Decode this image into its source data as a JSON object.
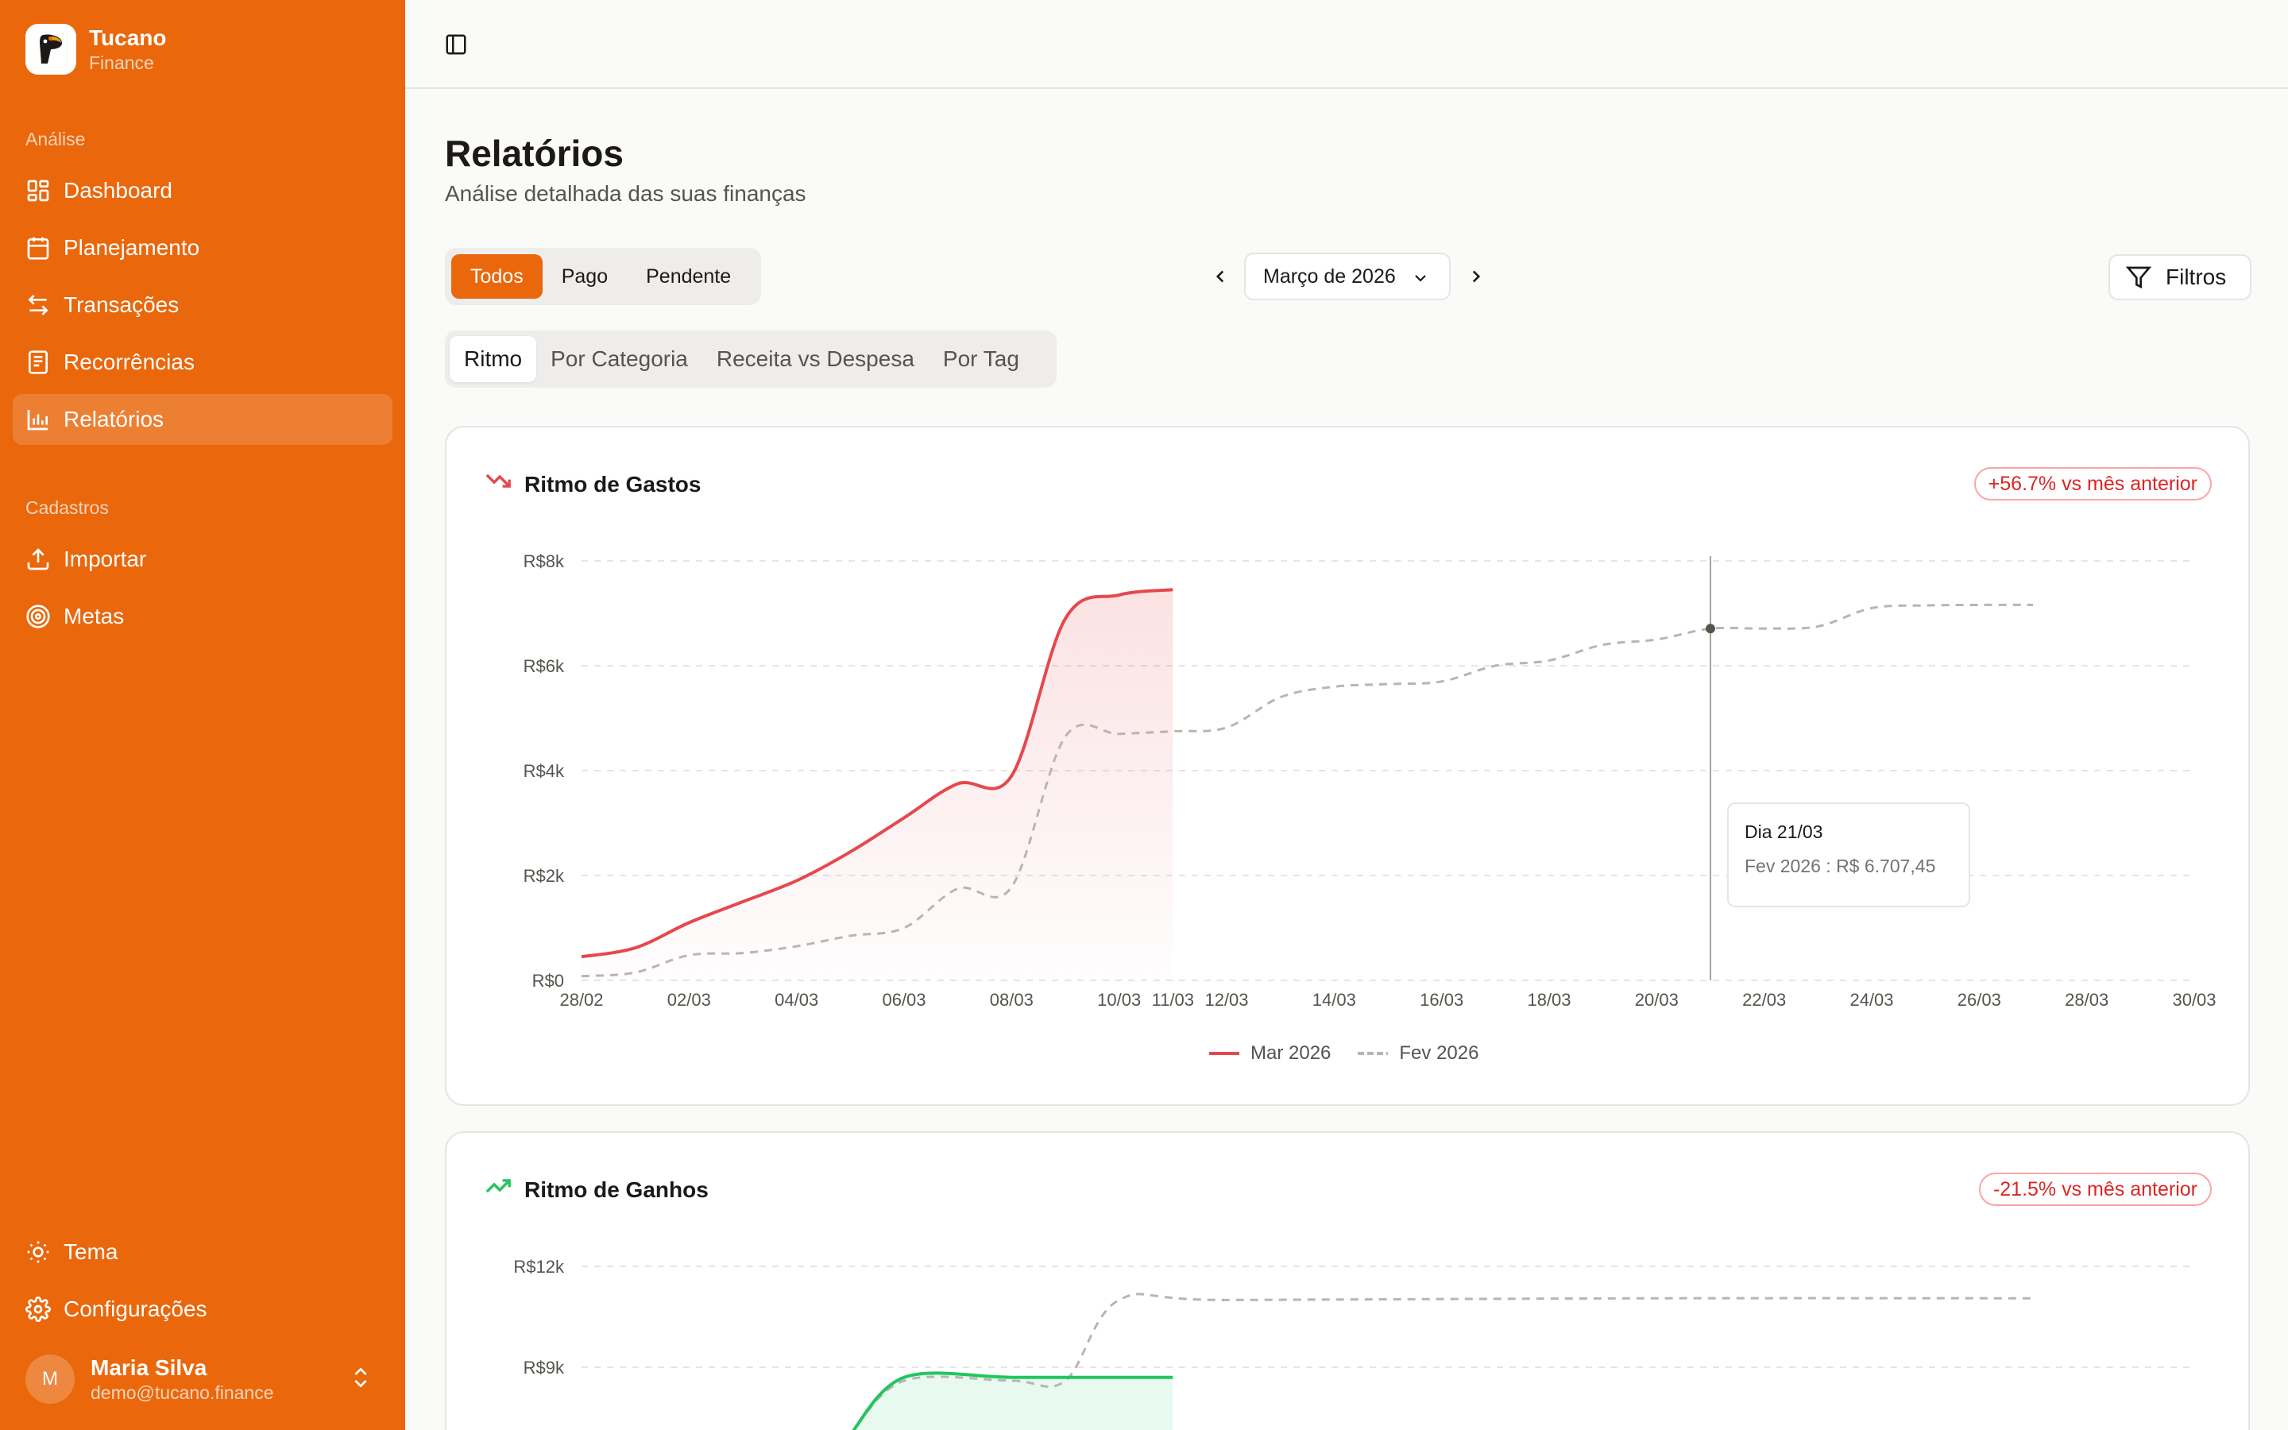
{
  "brand": {
    "name": "Tucano",
    "sub": "Finance"
  },
  "sidebar": {
    "section_analysis": "Análise",
    "section_catalog": "Cadastros",
    "items": [
      {
        "label": "Dashboard",
        "icon": "dashboard-icon"
      },
      {
        "label": "Planejamento",
        "icon": "calendar-icon"
      },
      {
        "label": "Transações",
        "icon": "transfer-icon"
      },
      {
        "label": "Recorrências",
        "icon": "receipt-icon"
      },
      {
        "label": "Relatórios",
        "icon": "bar-chart-icon"
      },
      {
        "label": "Importar",
        "icon": "upload-icon"
      },
      {
        "label": "Metas",
        "icon": "target-icon"
      },
      {
        "label": "Tema",
        "icon": "sun-icon"
      },
      {
        "label": "Configurações",
        "icon": "gear-icon"
      }
    ],
    "active_item": "Relatórios"
  },
  "user": {
    "initial": "M",
    "name": "Maria Silva",
    "email": "demo@tucano.finance"
  },
  "page": {
    "title": "Relatórios",
    "subtitle": "Análise detalhada das suas finanças"
  },
  "status_filter": {
    "options": [
      "Todos",
      "Pago",
      "Pendente"
    ],
    "selected": "Todos"
  },
  "month": {
    "label": "Março de 2026"
  },
  "filters_label": "Filtros",
  "tabs": {
    "items": [
      "Ritmo",
      "Por Categoria",
      "Receita vs Despesa",
      "Por Tag"
    ],
    "selected": "Ritmo"
  },
  "colors": {
    "brand": "#ea670c",
    "spending": "#e5484d",
    "income": "#22c55e",
    "previous": "#b8b5b2"
  },
  "spending_card": {
    "title": "Ritmo de Gastos",
    "badge": "+56.7% vs mês anterior",
    "tooltip": {
      "title": "Dia 21/03",
      "value": "Fev 2026 : R$ 6.707,45"
    },
    "legend": [
      "Mar 2026",
      "Fev 2026"
    ]
  },
  "income_card": {
    "title": "Ritmo de Ganhos",
    "badge": "-21.5% vs mês anterior"
  },
  "chart_data": [
    {
      "type": "line",
      "title": "Ritmo de Gastos",
      "x_tick_labels": [
        "28/02",
        "02/03",
        "04/03",
        "06/03",
        "08/03",
        "10/03",
        "11/03",
        "12/03",
        "14/03",
        "16/03",
        "18/03",
        "20/03",
        "22/03",
        "24/03",
        "26/03",
        "28/03",
        "30/03"
      ],
      "y_tick_labels": [
        "R$0",
        "R$2k",
        "R$4k",
        "R$6k",
        "R$8k"
      ],
      "ylim": [
        0,
        8000
      ],
      "xlim": [
        "28/02",
        "30/03"
      ],
      "grid": true,
      "legend_position": "bottom",
      "series": [
        {
          "name": "Mar 2026",
          "x": [
            "28/02",
            "01/03",
            "02/03",
            "03/03",
            "04/03",
            "05/03",
            "06/03",
            "07/03",
            "08/03",
            "09/03",
            "10/03",
            "11/03"
          ],
          "y": [
            450,
            620,
            1100,
            1500,
            1900,
            2450,
            3100,
            3750,
            3900,
            6900,
            7350,
            7450
          ]
        },
        {
          "name": "Fev 2026",
          "x": [
            "28/02",
            "01/03",
            "02/03",
            "03/03",
            "04/03",
            "05/03",
            "06/03",
            "07/03",
            "08/03",
            "09/03",
            "10/03",
            "11/03",
            "12/03",
            "13/03",
            "14/03",
            "15/03",
            "16/03",
            "17/03",
            "18/03",
            "19/03",
            "20/03",
            "21/03",
            "22/03",
            "23/03",
            "24/03",
            "25/03",
            "26/03",
            "27/03"
          ],
          "y": [
            80,
            150,
            480,
            520,
            650,
            850,
            1000,
            1750,
            1780,
            4650,
            4700,
            4750,
            4820,
            5400,
            5600,
            5650,
            5700,
            6000,
            6100,
            6400,
            6500,
            6707.45,
            6710,
            6750,
            7100,
            7150,
            7160,
            7160
          ]
        }
      ]
    },
    {
      "type": "area",
      "title": "Ritmo de Ganhos",
      "y_tick_labels": [
        "R$9k",
        "R$12k"
      ],
      "grid": true,
      "series": [
        {
          "name": "Mar 2026",
          "x": [
            "05/03",
            "06/03",
            "08/03",
            "10/03",
            "11/03"
          ],
          "y": [
            7000,
            8700,
            8700,
            8700,
            8700
          ]
        },
        {
          "name": "Fev 2026",
          "x": [
            "05/03",
            "06/03",
            "08/03",
            "09/03",
            "10/03",
            "12/03",
            "20/03",
            "27/03"
          ],
          "y": [
            7000,
            8600,
            8600,
            8600,
            11000,
            11000,
            11050,
            11050
          ]
        }
      ]
    }
  ]
}
